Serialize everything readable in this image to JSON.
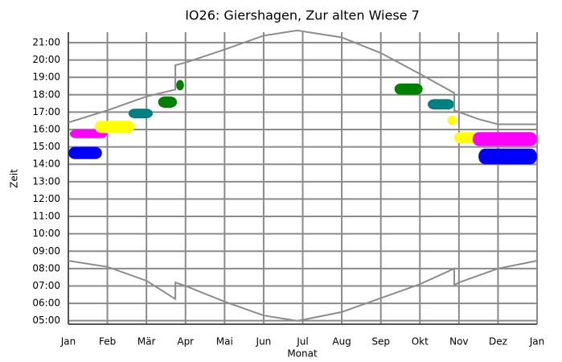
{
  "chart_data": {
    "type": "line",
    "title": "IO26: Giershagen, Zur alten Wiese 7",
    "xlabel": "Monat",
    "ylabel": "Zeit",
    "xlim": [
      0,
      12
    ],
    "ylim": [
      4.8,
      21.6
    ],
    "grid": true,
    "xticks": [
      {
        "value": 0,
        "label": "Jan"
      },
      {
        "value": 1,
        "label": "Feb"
      },
      {
        "value": 2,
        "label": "Mär"
      },
      {
        "value": 3,
        "label": "Apr"
      },
      {
        "value": 4,
        "label": "Mai"
      },
      {
        "value": 5,
        "label": "Jun"
      },
      {
        "value": 6,
        "label": "Jul"
      },
      {
        "value": 7,
        "label": "Aug"
      },
      {
        "value": 8,
        "label": "Sep"
      },
      {
        "value": 9,
        "label": "Okt"
      },
      {
        "value": 10,
        "label": "Nov"
      },
      {
        "value": 11,
        "label": "Dez"
      },
      {
        "value": 12,
        "label": "Jan"
      }
    ],
    "yticks": [
      {
        "value": 5,
        "label": "05:00"
      },
      {
        "value": 6,
        "label": "06:00"
      },
      {
        "value": 7,
        "label": "07:00"
      },
      {
        "value": 8,
        "label": "08:00"
      },
      {
        "value": 9,
        "label": "09:00"
      },
      {
        "value": 10,
        "label": "10:00"
      },
      {
        "value": 11,
        "label": "11:00"
      },
      {
        "value": 12,
        "label": "12:00"
      },
      {
        "value": 13,
        "label": "13:00"
      },
      {
        "value": 14,
        "label": "14:00"
      },
      {
        "value": 15,
        "label": "15:00"
      },
      {
        "value": 16,
        "label": "16:00"
      },
      {
        "value": 17,
        "label": "17:00"
      },
      {
        "value": 18,
        "label": "18:00"
      },
      {
        "value": 19,
        "label": "19:00"
      },
      {
        "value": 20,
        "label": "20:00"
      },
      {
        "value": 21,
        "label": "21:00"
      }
    ],
    "series": [
      {
        "color": "#8c8c8c",
        "x": [
          0,
          1,
          2,
          2.74,
          2.74,
          3,
          4,
          5,
          5.86,
          7,
          8,
          9,
          9.88,
          9.88,
          10.5,
          11,
          12
        ],
        "values": [
          16.4,
          17.1,
          17.9,
          18.3,
          19.7,
          19.85,
          20.6,
          21.4,
          21.7,
          21.3,
          20.4,
          19.2,
          18.1,
          17.1,
          16.6,
          16.3,
          16.3
        ]
      },
      {
        "color": "#8c8c8c",
        "x": [
          0,
          1,
          2,
          2.74,
          2.74,
          3,
          4,
          5,
          5.86,
          6,
          7,
          8,
          9,
          9.88,
          9.88,
          10,
          11,
          12
        ],
        "values": [
          8.45,
          8.1,
          7.3,
          6.25,
          7.2,
          7.0,
          6.1,
          5.3,
          5.0,
          5.05,
          5.5,
          6.3,
          7.1,
          8.0,
          7.05,
          7.2,
          8.0,
          8.45
        ]
      }
    ],
    "regions": [
      {
        "color": "#0000ff",
        "x": [
          0.0,
          0.86
        ],
        "y": [
          14.3,
          15.0
        ]
      },
      {
        "color": "#ff00ff",
        "x": [
          0.04,
          0.99
        ],
        "y": [
          15.5,
          16.0
        ]
      },
      {
        "color": "#ffff00",
        "x": [
          0.68,
          1.69
        ],
        "y": [
          15.8,
          16.5
        ]
      },
      {
        "color": "#008080",
        "x": [
          1.54,
          2.16
        ],
        "y": [
          16.65,
          17.2
        ]
      },
      {
        "color": "#008000",
        "x": [
          2.3,
          2.78
        ],
        "y": [
          17.25,
          17.9
        ]
      },
      {
        "color": "#008000",
        "x": [
          2.76,
          2.96
        ],
        "y": [
          18.25,
          18.85
        ]
      },
      {
        "color": "#008000",
        "x": [
          8.35,
          9.07
        ],
        "y": [
          18.0,
          18.65
        ]
      },
      {
        "color": "#008080",
        "x": [
          9.2,
          9.88
        ],
        "y": [
          17.15,
          17.75
        ]
      },
      {
        "color": "#ffff00",
        "x": [
          9.71,
          9.94
        ],
        "y": [
          16.25,
          16.8
        ]
      },
      {
        "color": "#ffff00",
        "x": [
          9.88,
          10.5
        ],
        "y": [
          15.2,
          15.85
        ]
      },
      {
        "color": "#ff00ff",
        "x": [
          10.35,
          12.0
        ],
        "y": [
          15.05,
          15.85
        ]
      },
      {
        "color": "#0000ff",
        "x": [
          10.5,
          12.0
        ],
        "y": [
          14.0,
          14.9
        ]
      }
    ]
  }
}
